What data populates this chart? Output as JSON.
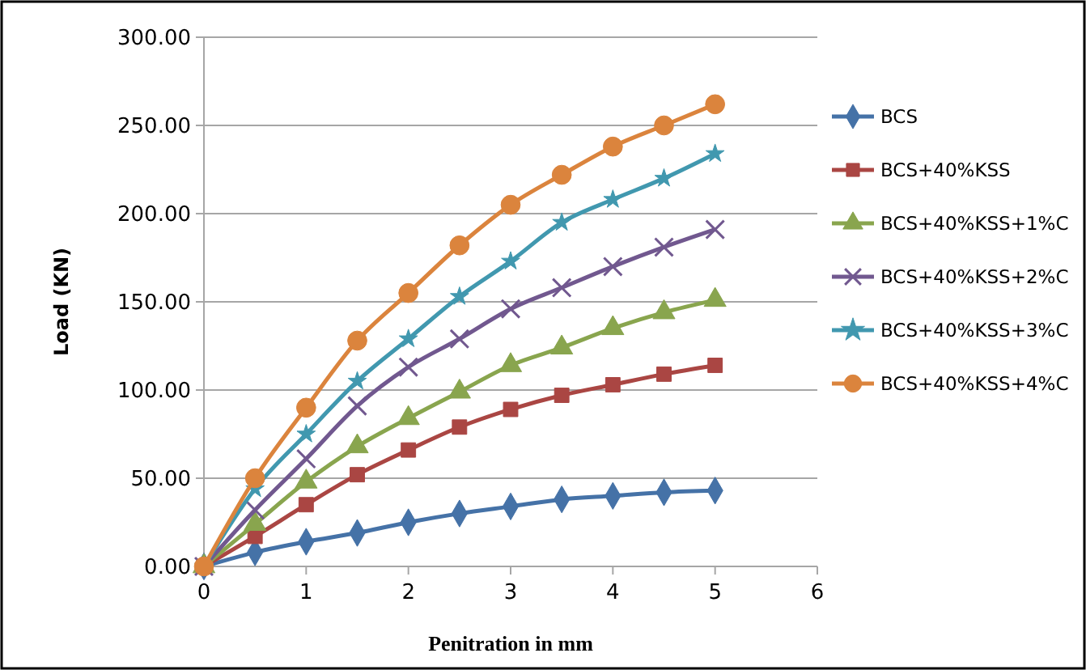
{
  "chart_data": {
    "type": "line",
    "xlabel": "Penitration in mm",
    "ylabel": "Load (KN)",
    "x": [
      0,
      0.5,
      1,
      1.5,
      2,
      2.5,
      3,
      3.5,
      4,
      4.5,
      5
    ],
    "xlim": [
      0,
      6
    ],
    "xticks": [
      0,
      1,
      2,
      3,
      4,
      5,
      6
    ],
    "ylim": [
      0,
      300
    ],
    "yticks": [
      {
        "value": 0,
        "label": "0.00"
      },
      {
        "value": 50,
        "label": "50.00"
      },
      {
        "value": 100,
        "label": "100.00"
      },
      {
        "value": 150,
        "label": "150.00"
      },
      {
        "value": 200,
        "label": "200.00"
      },
      {
        "value": 250,
        "label": "250.00"
      },
      {
        "value": 300,
        "label": "300.00"
      }
    ],
    "grid": "y",
    "legend": "right",
    "line_style": "solid",
    "series": [
      {
        "name": "BCS",
        "color": "#4572a7",
        "marker": "diamond",
        "values": [
          0,
          8,
          14,
          19,
          25,
          30,
          34,
          38,
          40,
          42,
          43
        ]
      },
      {
        "name": "BCS+40%KSS",
        "color": "#aa4643",
        "marker": "square",
        "values": [
          0,
          17,
          35,
          52,
          66,
          79,
          89,
          97,
          103,
          109,
          114
        ]
      },
      {
        "name": "BCS+40%KSS+1%C",
        "color": "#89a54e",
        "marker": "triangle",
        "values": [
          0,
          24,
          48,
          68,
          84,
          99,
          114,
          124,
          135,
          144,
          151
        ]
      },
      {
        "name": "BCS+40%KSS+2%C",
        "color": "#71588f",
        "marker": "cross",
        "values": [
          0,
          32,
          61,
          91,
          113,
          129,
          146,
          158,
          170,
          181,
          191
        ]
      },
      {
        "name": "BCS+40%KSS+3%C",
        "color": "#4198af",
        "marker": "star",
        "values": [
          0,
          44,
          75,
          105,
          129,
          153,
          173,
          195,
          208,
          220,
          234
        ]
      },
      {
        "name": "BCS+40%KSS+4%C",
        "color": "#db843d",
        "marker": "circle",
        "values": [
          0,
          50,
          90,
          128,
          155,
          182,
          205,
          222,
          238,
          250,
          262
        ]
      }
    ]
  }
}
